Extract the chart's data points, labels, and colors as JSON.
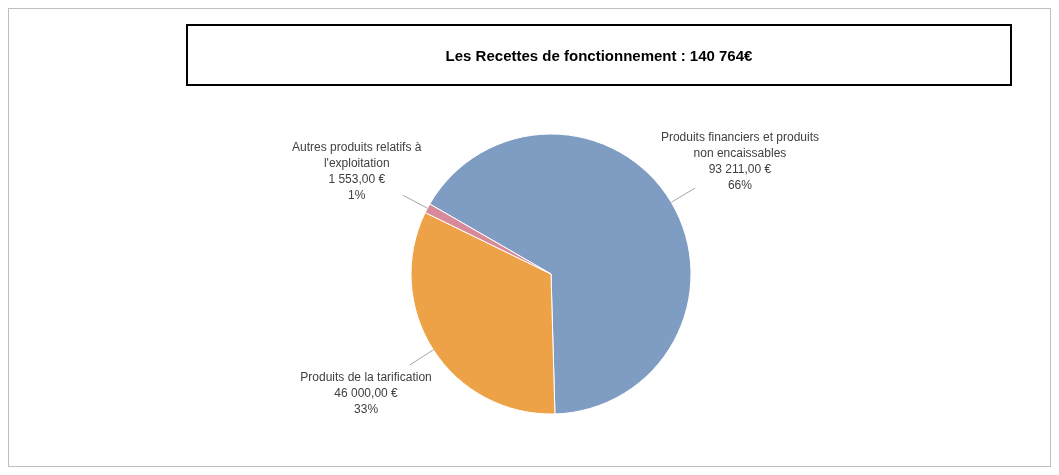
{
  "chart_data": {
    "type": "pie",
    "title": "Les Recettes de fonctionnement : 140 764€",
    "categories": [
      "Produits financiers et produits non encaissables",
      "Produits de la tarification",
      "Autres produits relatifs à l'exploitation"
    ],
    "values": [
      93211,
      46000,
      1553
    ],
    "colors": [
      "#7f9cc2",
      "#eda248",
      "#d98a9a"
    ],
    "value_labels": [
      "93 211,00 €\n66%",
      "46 000,00 €\n33%",
      "1 553,00 €\n1%"
    ],
    "legend": false
  }
}
